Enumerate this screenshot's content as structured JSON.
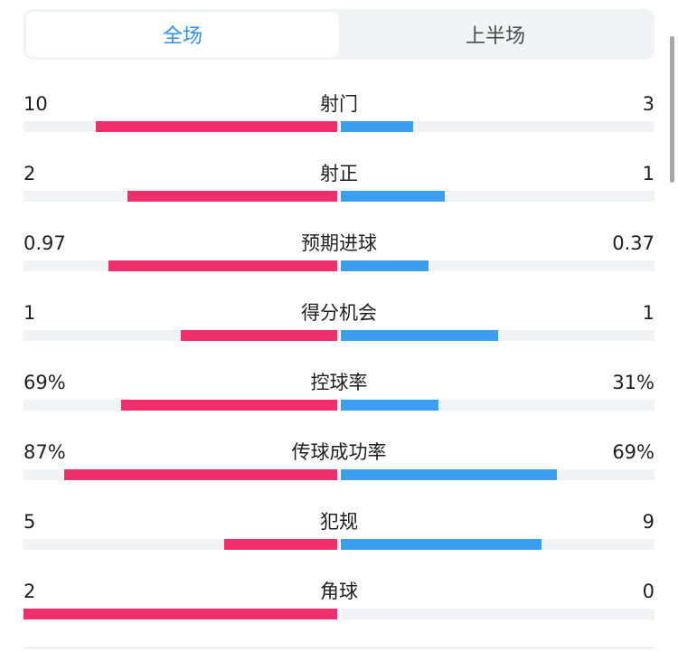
{
  "colors": {
    "home": "#ee2f6c",
    "away": "#3b9ef0",
    "active_tab": "#2f8fe8"
  },
  "tabs": [
    {
      "label": "全场",
      "active": true
    },
    {
      "label": "上半场",
      "active": false
    }
  ],
  "stats": [
    {
      "label": "射门",
      "home": "10",
      "away": "3",
      "home_frac": 0.77,
      "away_frac": 0.23
    },
    {
      "label": "射正",
      "home": "2",
      "away": "1",
      "home_frac": 0.67,
      "away_frac": 0.33
    },
    {
      "label": "预期进球",
      "home": "0.97",
      "away": "0.37",
      "home_frac": 0.73,
      "away_frac": 0.28
    },
    {
      "label": "得分机会",
      "home": "1",
      "away": "1",
      "home_frac": 0.5,
      "away_frac": 0.5
    },
    {
      "label": "控球率",
      "home": "69%",
      "away": "31%",
      "home_frac": 0.69,
      "away_frac": 0.31
    },
    {
      "label": "传球成功率",
      "home": "87%",
      "away": "69%",
      "home_frac": 0.87,
      "away_frac": 0.69
    },
    {
      "label": "犯规",
      "home": "5",
      "away": "9",
      "home_frac": 0.36,
      "away_frac": 0.64
    },
    {
      "label": "角球",
      "home": "2",
      "away": "0",
      "home_frac": 1.0,
      "away_frac": 0.0
    }
  ]
}
